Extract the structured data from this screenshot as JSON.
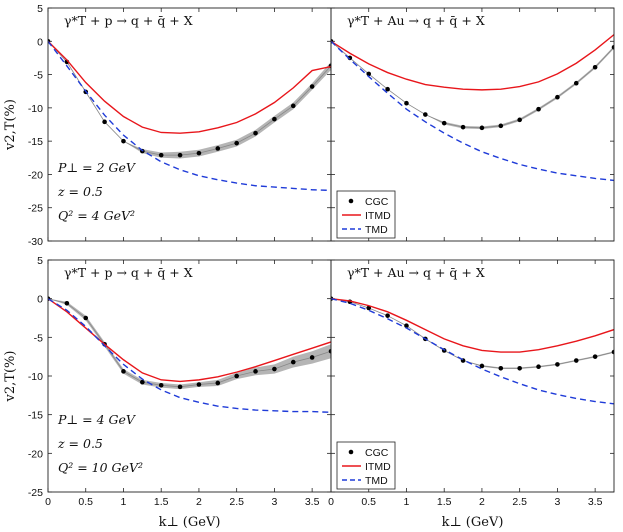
{
  "figure": {
    "ylabel": "v2,T(%)",
    "xlabel": "k⊥ (GeV)",
    "colors": {
      "cgc": "#000000",
      "itmd": "#e8161b",
      "tmd": "#1f3bd8",
      "band": "#a8a8a8",
      "cgc_line": "#888888"
    }
  },
  "chart_data": [
    {
      "type": "line",
      "panel": "top-left",
      "title": "γ*T + p → q + q̄ + X",
      "xlim": [
        0,
        3.75
      ],
      "ylim": [
        -30,
        5
      ],
      "xticks": [
        0,
        0.5,
        1,
        1.5,
        2,
        2.5,
        3,
        3.5
      ],
      "xtick_labels": [
        "0",
        "0.5",
        "1",
        "1.5",
        "2",
        "2.5",
        "3",
        "3.5"
      ],
      "yticks": [
        5,
        0,
        -5,
        -10,
        -15,
        -20,
        -25,
        -30
      ],
      "ytick_labels": [
        "5",
        "0",
        "-5",
        "-10",
        "-15",
        "-20",
        "-25",
        "-30"
      ],
      "show_xlabels": false,
      "show_ylabels": true,
      "annotations": [
        "P⊥ = 2 GeV",
        "z = 0.5",
        "Q² = 4 GeV²"
      ],
      "legend": null,
      "series": [
        {
          "name": "CGC",
          "style": "points",
          "x": [
            0,
            0.25,
            0.5,
            0.75,
            1,
            1.25,
            1.5,
            1.75,
            2,
            2.25,
            2.5,
            2.75,
            3,
            3.25,
            3.5,
            3.75
          ],
          "y": [
            0,
            -3.1,
            -7.6,
            -12.1,
            -15.0,
            -16.5,
            -17.1,
            -17.1,
            -16.8,
            -16.1,
            -15.3,
            -13.8,
            -11.7,
            -9.7,
            -6.8,
            -3.7
          ],
          "band": [
            0,
            0,
            0,
            0,
            0,
            0.3,
            0.4,
            0.5,
            0.5,
            0.5,
            0.5,
            0.5,
            0.5,
            0.5,
            0.5,
            0.6
          ]
        },
        {
          "name": "ITMD",
          "style": "solid",
          "x": [
            0,
            0.25,
            0.5,
            0.75,
            1,
            1.25,
            1.5,
            1.75,
            2,
            2.25,
            2.5,
            2.75,
            3,
            3.25,
            3.5,
            3.75
          ],
          "y": [
            0,
            -2.8,
            -6.2,
            -9.0,
            -11.3,
            -12.9,
            -13.7,
            -13.8,
            -13.6,
            -13.0,
            -12.2,
            -10.9,
            -9.2,
            -7.0,
            -4.4,
            -3.8
          ]
        },
        {
          "name": "TMD",
          "style": "dashed",
          "x": [
            0,
            0.25,
            0.5,
            0.75,
            1,
            1.25,
            1.5,
            1.75,
            2,
            2.25,
            2.5,
            2.75,
            3,
            3.25,
            3.5,
            3.75
          ],
          "y": [
            0,
            -3.7,
            -7.5,
            -11.1,
            -14.1,
            -16.4,
            -18.1,
            -19.3,
            -20.2,
            -20.8,
            -21.3,
            -21.7,
            -21.9,
            -22.1,
            -22.3,
            -22.4
          ]
        }
      ]
    },
    {
      "type": "line",
      "panel": "top-right",
      "title": "γ*T + Au → q + q̄ + X",
      "xlim": [
        0,
        3.75
      ],
      "ylim": [
        -30,
        5
      ],
      "xticks": [
        0,
        0.5,
        1,
        1.5,
        2,
        2.5,
        3,
        3.5
      ],
      "xtick_labels": [
        "0",
        "0.5",
        "1",
        "1.5",
        "2",
        "2.5",
        "3",
        "3.5"
      ],
      "yticks": [
        5,
        0,
        -5,
        -10,
        -15,
        -20,
        -25,
        -30
      ],
      "ytick_labels": [
        "5",
        "0",
        "-5",
        "-10",
        "-15",
        "-20",
        "-25",
        "-30"
      ],
      "show_xlabels": false,
      "show_ylabels": false,
      "annotations": [],
      "legend": [
        "CGC",
        "ITMD",
        "TMD"
      ],
      "series": [
        {
          "name": "CGC",
          "style": "points",
          "x": [
            0,
            0.25,
            0.5,
            0.75,
            1,
            1.25,
            1.5,
            1.75,
            2,
            2.25,
            2.5,
            2.75,
            3,
            3.25,
            3.5,
            3.75
          ],
          "y": [
            0,
            -2.5,
            -4.9,
            -7.2,
            -9.3,
            -11.0,
            -12.3,
            -12.9,
            -13.0,
            -12.7,
            -11.8,
            -10.2,
            -8.4,
            -6.3,
            -3.9,
            -0.9
          ],
          "band": [
            0,
            0,
            0,
            0,
            0,
            0,
            0.2,
            0.2,
            0.2,
            0.2,
            0.2,
            0.2,
            0.2,
            0.2,
            0.2,
            0.2
          ]
        },
        {
          "name": "ITMD",
          "style": "solid",
          "x": [
            0,
            0.25,
            0.5,
            0.75,
            1,
            1.25,
            1.5,
            1.75,
            2,
            2.25,
            2.5,
            2.75,
            3,
            3.25,
            3.5,
            3.75
          ],
          "y": [
            0,
            -1.8,
            -3.4,
            -4.7,
            -5.7,
            -6.5,
            -6.9,
            -7.2,
            -7.3,
            -7.2,
            -6.8,
            -6.1,
            -4.9,
            -3.3,
            -1.3,
            1.0
          ]
        },
        {
          "name": "TMD",
          "style": "dashed",
          "x": [
            0,
            0.25,
            0.5,
            0.75,
            1,
            1.25,
            1.5,
            1.75,
            2,
            2.25,
            2.5,
            2.75,
            3,
            3.25,
            3.5,
            3.75
          ],
          "y": [
            0,
            -2.7,
            -5.3,
            -7.8,
            -10.2,
            -12.1,
            -13.8,
            -15.3,
            -16.6,
            -17.6,
            -18.5,
            -19.2,
            -19.8,
            -20.2,
            -20.6,
            -20.9
          ]
        }
      ]
    },
    {
      "type": "line",
      "panel": "bottom-left",
      "title": "γ*T + p → q + q̄ + X",
      "xlim": [
        0,
        3.75
      ],
      "ylim": [
        -25,
        5
      ],
      "xticks": [
        0,
        0.5,
        1,
        1.5,
        2,
        2.5,
        3,
        3.5
      ],
      "xtick_labels": [
        "0",
        "0.5",
        "1",
        "1.5",
        "2",
        "2.5",
        "3",
        "3.5"
      ],
      "yticks": [
        5,
        0,
        -5,
        -10,
        -15,
        -20,
        -25
      ],
      "ytick_labels": [
        "5",
        "0",
        "-5",
        "-10",
        "-15",
        "-20",
        "-25"
      ],
      "show_xlabels": true,
      "show_ylabels": true,
      "annotations": [
        "P⊥ = 4 GeV",
        "z = 0.5",
        "Q² = 10 GeV²"
      ],
      "legend": null,
      "series": [
        {
          "name": "CGC",
          "style": "points",
          "x": [
            0,
            0.25,
            0.5,
            0.75,
            1,
            1.25,
            1.5,
            1.75,
            2,
            2.25,
            2.5,
            2.75,
            3,
            3.25,
            3.5,
            3.75
          ],
          "y": [
            0,
            -0.6,
            -2.5,
            -5.9,
            -9.4,
            -10.8,
            -11.2,
            -11.4,
            -11.1,
            -10.9,
            -10.0,
            -9.4,
            -9.1,
            -8.2,
            -7.6,
            -6.8
          ],
          "band": [
            0,
            0.2,
            0.3,
            0.3,
            0.3,
            0.3,
            0.3,
            0.3,
            0.3,
            0.4,
            0.4,
            0.5,
            0.6,
            0.7,
            0.8,
            0.9
          ]
        },
        {
          "name": "ITMD",
          "style": "solid",
          "x": [
            0,
            0.25,
            0.5,
            0.75,
            1,
            1.25,
            1.5,
            1.75,
            2,
            2.25,
            2.5,
            2.75,
            3,
            3.25,
            3.5,
            3.75
          ],
          "y": [
            0,
            -1.7,
            -3.8,
            -5.9,
            -7.9,
            -9.6,
            -10.5,
            -10.7,
            -10.5,
            -10.1,
            -9.5,
            -8.8,
            -8.0,
            -7.2,
            -6.4,
            -5.6
          ]
        },
        {
          "name": "TMD",
          "style": "dashed",
          "x": [
            0,
            0.25,
            0.5,
            0.75,
            1,
            1.25,
            1.5,
            1.75,
            2,
            2.25,
            2.5,
            2.75,
            3,
            3.25,
            3.5,
            3.75
          ],
          "y": [
            0,
            -1.5,
            -3.6,
            -6.1,
            -8.5,
            -10.4,
            -11.8,
            -12.8,
            -13.4,
            -13.9,
            -14.2,
            -14.4,
            -14.5,
            -14.6,
            -14.6,
            -14.7
          ]
        }
      ]
    },
    {
      "type": "line",
      "panel": "bottom-right",
      "title": "γ*T + Au → q + q̄ + X",
      "xlim": [
        0,
        3.75
      ],
      "ylim": [
        -25,
        5
      ],
      "xticks": [
        0,
        0.5,
        1,
        1.5,
        2,
        2.5,
        3,
        3.5
      ],
      "xtick_labels": [
        "0",
        "0.5",
        "1",
        "1.5",
        "2",
        "2.5",
        "3",
        "3.5"
      ],
      "yticks": [
        5,
        0,
        -5,
        -10,
        -15,
        -20,
        -25
      ],
      "ytick_labels": [
        "5",
        "0",
        "-5",
        "-10",
        "-15",
        "-20",
        "-25"
      ],
      "show_xlabels": true,
      "show_ylabels": false,
      "annotations": [],
      "legend": [
        "CGC",
        "ITMD",
        "TMD"
      ],
      "series": [
        {
          "name": "CGC",
          "style": "points",
          "x": [
            0,
            0.25,
            0.5,
            0.75,
            1,
            1.25,
            1.5,
            1.75,
            2,
            2.25,
            2.5,
            2.75,
            3,
            3.25,
            3.5,
            3.75
          ],
          "y": [
            0,
            -0.4,
            -1.2,
            -2.2,
            -3.5,
            -5.2,
            -6.7,
            -8.0,
            -8.7,
            -9.0,
            -9.0,
            -8.8,
            -8.5,
            -8.0,
            -7.5,
            -6.9
          ],
          "band": [
            0,
            0,
            0,
            0,
            0,
            0,
            0,
            0,
            0.1,
            0.1,
            0.1,
            0.1,
            0.1,
            0.1,
            0.1,
            0.1
          ]
        },
        {
          "name": "ITMD",
          "style": "solid",
          "x": [
            0,
            0.25,
            0.5,
            0.75,
            1,
            1.25,
            1.5,
            1.75,
            2,
            2.25,
            2.5,
            2.75,
            3,
            3.25,
            3.5,
            3.75
          ],
          "y": [
            0,
            -0.3,
            -0.9,
            -1.7,
            -2.8,
            -4.0,
            -5.2,
            -6.1,
            -6.7,
            -6.9,
            -6.9,
            -6.6,
            -6.1,
            -5.5,
            -4.8,
            -4.0
          ]
        },
        {
          "name": "TMD",
          "style": "dashed",
          "x": [
            0,
            0.25,
            0.5,
            0.75,
            1,
            1.25,
            1.5,
            1.75,
            2,
            2.25,
            2.5,
            2.75,
            3,
            3.25,
            3.5,
            3.75
          ],
          "y": [
            0,
            -0.6,
            -1.5,
            -2.6,
            -3.8,
            -5.2,
            -6.6,
            -7.9,
            -9.1,
            -10.1,
            -11.0,
            -11.8,
            -12.4,
            -12.9,
            -13.3,
            -13.6
          ]
        }
      ]
    }
  ]
}
